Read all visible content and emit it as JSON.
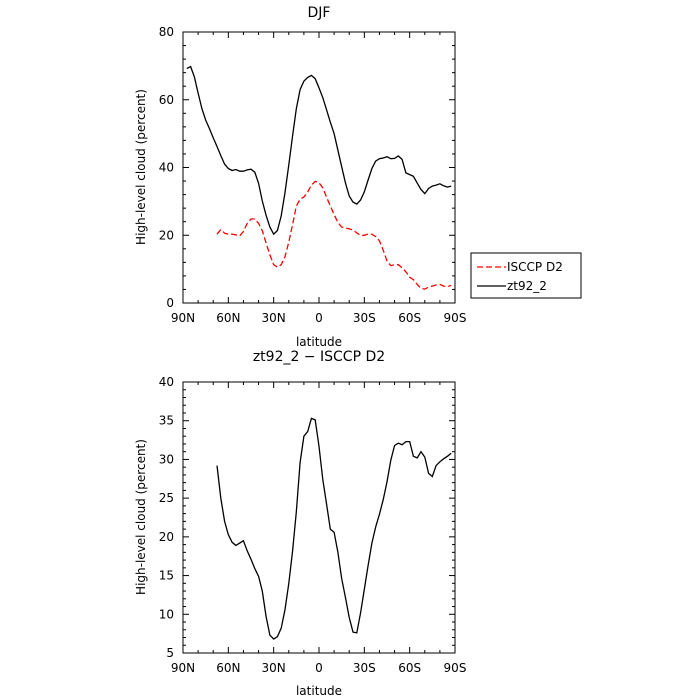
{
  "chart_data": [
    {
      "type": "line",
      "title": "DJF",
      "xlabel": "latitude",
      "ylabel": "High-level cloud (percent)",
      "xlim": [
        90,
        -90
      ],
      "ylim": [
        0,
        80
      ],
      "xticks": [
        "90N",
        "60N",
        "30N",
        "0",
        "30S",
        "60S",
        "90S"
      ],
      "yticks": [
        "0",
        "20",
        "40",
        "60",
        "80"
      ],
      "legend_position": "right",
      "series": [
        {
          "name": "ISCCP D2",
          "color": "#ff0000",
          "style": "dashed",
          "x": [
            67.5,
            65,
            62.5,
            60,
            57.5,
            55,
            52.5,
            50,
            47.5,
            45,
            42.5,
            40,
            37.5,
            35,
            32.5,
            30,
            27.5,
            25,
            22.5,
            20,
            17.5,
            15,
            12.5,
            10,
            7.5,
            5,
            2.5,
            0,
            -2.5,
            -5,
            -7.5,
            -10,
            -12.5,
            -15,
            -17.5,
            -20,
            -22.5,
            -25,
            -27.5,
            -30,
            -32.5,
            -35,
            -37.5,
            -40,
            -42.5,
            -45,
            -47.5,
            -50,
            -52.5,
            -55,
            -57.5,
            -60,
            -62.5,
            -65,
            -67.5,
            -70,
            -72.5,
            -75,
            -77.5,
            -80,
            -82.5,
            -85,
            -87.5
          ],
          "y": [
            20.3,
            21.7,
            20.6,
            20.3,
            20.3,
            20.1,
            19.8,
            21.1,
            23.5,
            24.8,
            24.8,
            23.5,
            21.3,
            17.7,
            14.2,
            11.3,
            10.6,
            11.3,
            13.7,
            18.0,
            23.2,
            28.6,
            30.6,
            31.3,
            32.8,
            34.8,
            35.9,
            35.5,
            34.0,
            31.2,
            28.7,
            26.1,
            23.8,
            22.4,
            22.1,
            21.9,
            21.5,
            20.7,
            19.9,
            20.0,
            20.4,
            20.3,
            19.6,
            18.4,
            15.6,
            12.4,
            11.0,
            11.3,
            11.3,
            10.4,
            9.2,
            7.6,
            6.9,
            5.5,
            4.3,
            4.1,
            4.7,
            5.0,
            5.3,
            5.5,
            5.0,
            4.8,
            5.2
          ]
        },
        {
          "name": "zt92_2",
          "color": "#000000",
          "style": "solid",
          "x": [
            87.5,
            85,
            82.5,
            80,
            77.5,
            75,
            72.5,
            70,
            67.5,
            65,
            62.5,
            60,
            57.5,
            55,
            52.5,
            50,
            47.5,
            45,
            42.5,
            40,
            37.5,
            35,
            32.5,
            30,
            27.5,
            25,
            22.5,
            20,
            17.5,
            15,
            12.5,
            10,
            7.5,
            5,
            2.5,
            0,
            -2.5,
            -5,
            -7.5,
            -10,
            -12.5,
            -15,
            -17.5,
            -20,
            -22.5,
            -25,
            -27.5,
            -30,
            -32.5,
            -35,
            -37.5,
            -40,
            -42.5,
            -45,
            -47.5,
            -50,
            -52.5,
            -55,
            -57.5,
            -60,
            -62.5,
            -65,
            -67.5,
            -70,
            -72.5,
            -75,
            -77.5,
            -80,
            -82.5,
            -85,
            -87.5
          ],
          "y": [
            69.2,
            69.8,
            66.8,
            62.0,
            57.4,
            54.0,
            51.5,
            48.8,
            46.2,
            43.5,
            41.0,
            39.7,
            39.1,
            39.4,
            38.9,
            38.9,
            39.3,
            39.5,
            38.6,
            35.3,
            30.1,
            25.9,
            22.4,
            20.3,
            21.4,
            25.7,
            32.6,
            40.8,
            49.4,
            57.3,
            63.0,
            65.5,
            66.6,
            67.2,
            66.2,
            63.5,
            60.6,
            57.0,
            53.4,
            50.0,
            45.1,
            40.2,
            35.5,
            31.6,
            29.8,
            29.2,
            30.4,
            32.8,
            36.3,
            39.7,
            41.9,
            42.6,
            42.8,
            43.2,
            42.6,
            42.7,
            43.4,
            42.4,
            38.4,
            37.9,
            37.4,
            35.4,
            33.5,
            32.3,
            33.8,
            34.5,
            34.8,
            35.2,
            34.6,
            34.2,
            34.5
          ]
        }
      ]
    },
    {
      "type": "line",
      "title": "zt92_2 − ISCCP D2",
      "xlabel": "latitude",
      "ylabel": "High-level cloud (percent)",
      "xlim": [
        90,
        -90
      ],
      "ylim": [
        5,
        40
      ],
      "xticks": [
        "90N",
        "60N",
        "30N",
        "0",
        "30S",
        "60S",
        "90S"
      ],
      "yticks": [
        "5",
        "10",
        "15",
        "20",
        "25",
        "30",
        "35",
        "40"
      ],
      "series": [
        {
          "color": "#000000",
          "style": "solid",
          "x": [
            67.5,
            65,
            62.5,
            60,
            57.5,
            55,
            52.5,
            50,
            47.5,
            45,
            42.5,
            40,
            37.5,
            35,
            32.5,
            30,
            27.5,
            25,
            22.5,
            20,
            17.5,
            15,
            12.5,
            10,
            7.5,
            5,
            2.5,
            0,
            -2.5,
            -5,
            -7.5,
            -10,
            -12.5,
            -15,
            -17.5,
            -20,
            -22.5,
            -25,
            -27.5,
            -30,
            -32.5,
            -35,
            -37.5,
            -40,
            -42.5,
            -45,
            -47.5,
            -50,
            -52.5,
            -55,
            -57.5,
            -60,
            -62.5,
            -65,
            -67.5,
            -70,
            -72.5,
            -75,
            -77.5,
            -80,
            -82.5,
            -85,
            -87.5
          ],
          "y": [
            29.2,
            25.0,
            22.0,
            20.3,
            19.3,
            18.9,
            19.2,
            19.5,
            18.2,
            17.1,
            15.9,
            14.9,
            13.0,
            9.7,
            7.3,
            6.8,
            7.1,
            8.2,
            10.6,
            14.0,
            18.2,
            23.2,
            29.6,
            33.0,
            33.6,
            35.3,
            35.1,
            31.7,
            27.4,
            24.2,
            21.0,
            20.6,
            18.0,
            14.6,
            12.2,
            9.6,
            7.7,
            7.6,
            10.2,
            13.2,
            16.3,
            19.2,
            21.3,
            22.9,
            24.8,
            27.1,
            29.9,
            31.8,
            32.1,
            31.9,
            32.3,
            32.3,
            30.4,
            30.2,
            31.0,
            30.3,
            28.2,
            27.8,
            29.2,
            29.7,
            30.1,
            30.4,
            30.8
          ]
        }
      ]
    }
  ]
}
